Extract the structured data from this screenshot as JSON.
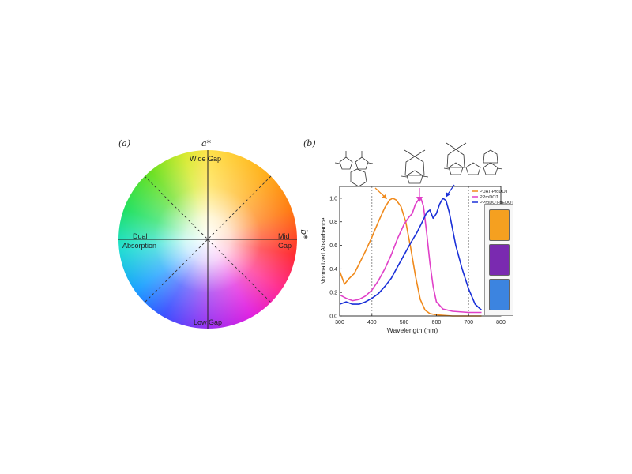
{
  "panel_a": {
    "panel_label": "(a)",
    "top_axis_label": "a*",
    "right_axis_label": "b*",
    "region_labels": {
      "top": "Wide Gap",
      "left_line1": "Dual",
      "left_line2": "Absorption",
      "right_line1": "Mid",
      "right_line2": "Gap",
      "bottom": "Low Gap"
    }
  },
  "panel_b": {
    "panel_label": "(b)"
  },
  "chart_data": {
    "type": "line",
    "xlabel": "Wavelength (nm)",
    "ylabel": "Normalized Absorbance",
    "xlim": [
      300,
      800
    ],
    "ylim": [
      0,
      1.1
    ],
    "x_ticks": [
      300,
      400,
      500,
      600,
      700,
      800
    ],
    "y_ticks": [
      0.0,
      0.2,
      0.4,
      0.6,
      0.8,
      1.0
    ],
    "x_tick_labels": [
      "300",
      "400",
      "500",
      "600",
      "700",
      "800"
    ],
    "y_tick_labels": [
      "0.0",
      "0.2",
      "0.4",
      "0.6",
      "0.8",
      "1.0"
    ],
    "reference_lines_x": [
      400,
      700
    ],
    "legend_position": "top-right",
    "series": [
      {
        "name": "PDAT-ProDOT",
        "color": "#f08a1c",
        "x": [
          300,
          315,
          330,
          345,
          360,
          380,
          400,
          420,
          440,
          455,
          465,
          475,
          490,
          505,
          520,
          535,
          550,
          565,
          580,
          600,
          650,
          700,
          740
        ],
        "y": [
          0.38,
          0.27,
          0.32,
          0.36,
          0.44,
          0.55,
          0.67,
          0.8,
          0.92,
          0.985,
          1.0,
          0.985,
          0.93,
          0.8,
          0.58,
          0.34,
          0.14,
          0.05,
          0.02,
          0.01,
          0.0,
          0.0,
          0.0
        ]
      },
      {
        "name": "PProDOT",
        "color": "#e040c8",
        "x": [
          300,
          320,
          340,
          360,
          380,
          400,
          420,
          440,
          460,
          480,
          500,
          515,
          525,
          535,
          545,
          552,
          560,
          570,
          580,
          590,
          600,
          620,
          650,
          700,
          740
        ],
        "y": [
          0.18,
          0.15,
          0.13,
          0.14,
          0.17,
          0.22,
          0.3,
          0.4,
          0.52,
          0.66,
          0.78,
          0.84,
          0.87,
          0.95,
          0.99,
          1.0,
          0.93,
          0.7,
          0.45,
          0.25,
          0.12,
          0.06,
          0.04,
          0.03,
          0.03
        ]
      },
      {
        "name": "PProDOT-bEDOT",
        "color": "#1a30d8",
        "x": [
          300,
          320,
          340,
          360,
          380,
          400,
          420,
          440,
          460,
          480,
          500,
          520,
          540,
          560,
          570,
          580,
          590,
          600,
          610,
          620,
          630,
          640,
          650,
          660,
          680,
          700,
          720,
          740
        ],
        "y": [
          0.1,
          0.12,
          0.1,
          0.1,
          0.12,
          0.15,
          0.19,
          0.25,
          0.32,
          0.42,
          0.52,
          0.62,
          0.71,
          0.82,
          0.88,
          0.9,
          0.83,
          0.87,
          0.95,
          1.0,
          0.98,
          0.88,
          0.74,
          0.6,
          0.4,
          0.23,
          0.1,
          0.05
        ]
      }
    ]
  },
  "film_colors": [
    "#f5a020",
    "#7a2ab0",
    "#3c84e0"
  ]
}
